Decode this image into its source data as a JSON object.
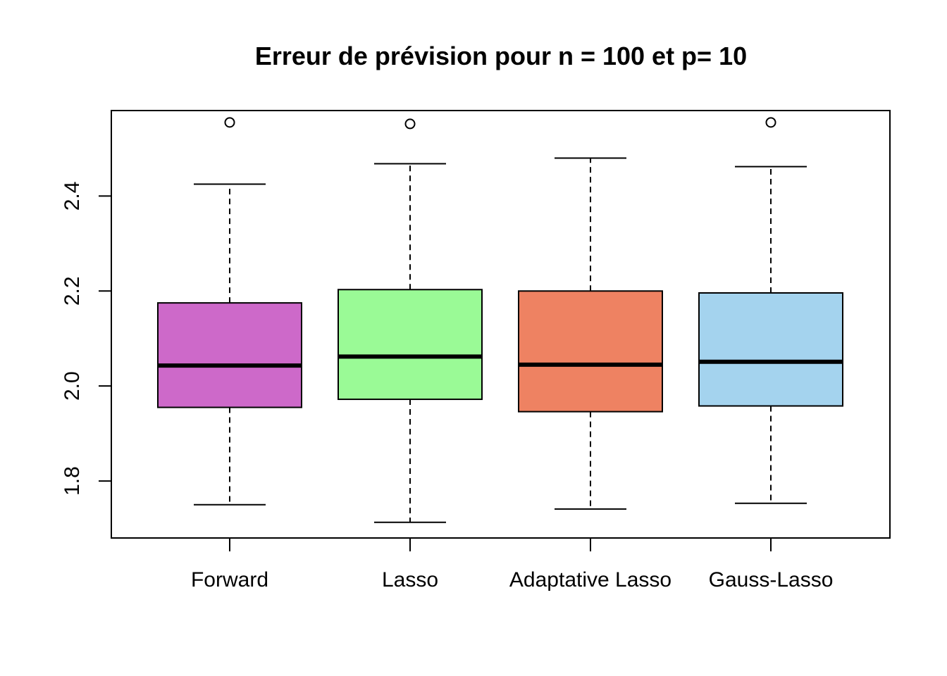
{
  "chart_data": {
    "type": "boxplot",
    "title": "Erreur de prévision pour n = 100 et p= 10",
    "xlabel": "",
    "ylabel": "",
    "ylim": [
      1.68,
      2.58
    ],
    "y_ticks": [
      1.8,
      2.0,
      2.2,
      2.4
    ],
    "y_tick_labels": [
      "1.8",
      "2.0",
      "2.2",
      "2.4"
    ],
    "grid": false,
    "categories": [
      "Forward",
      "Lasso",
      "Adaptative Lasso",
      "Gauss-Lasso"
    ],
    "boxes": [
      {
        "category": "Forward",
        "whisker_low": 1.75,
        "q1": 1.955,
        "median": 2.043,
        "q3": 2.175,
        "whisker_high": 2.425,
        "outliers": [
          2.555
        ],
        "color": "#CD69C9"
      },
      {
        "category": "Lasso",
        "whisker_low": 1.713,
        "q1": 1.972,
        "median": 2.062,
        "q3": 2.203,
        "whisker_high": 2.468,
        "outliers": [
          2.552
        ],
        "color": "#9AFA96"
      },
      {
        "category": "Adaptative Lasso",
        "whisker_low": 1.741,
        "q1": 1.946,
        "median": 2.045,
        "q3": 2.2,
        "whisker_high": 2.48,
        "outliers": [],
        "color": "#EE8262"
      },
      {
        "category": "Gauss-Lasso",
        "whisker_low": 1.753,
        "q1": 1.958,
        "median": 2.051,
        "q3": 2.196,
        "whisker_high": 2.462,
        "outliers": [
          2.555
        ],
        "color": "#A4D3EE"
      }
    ]
  }
}
